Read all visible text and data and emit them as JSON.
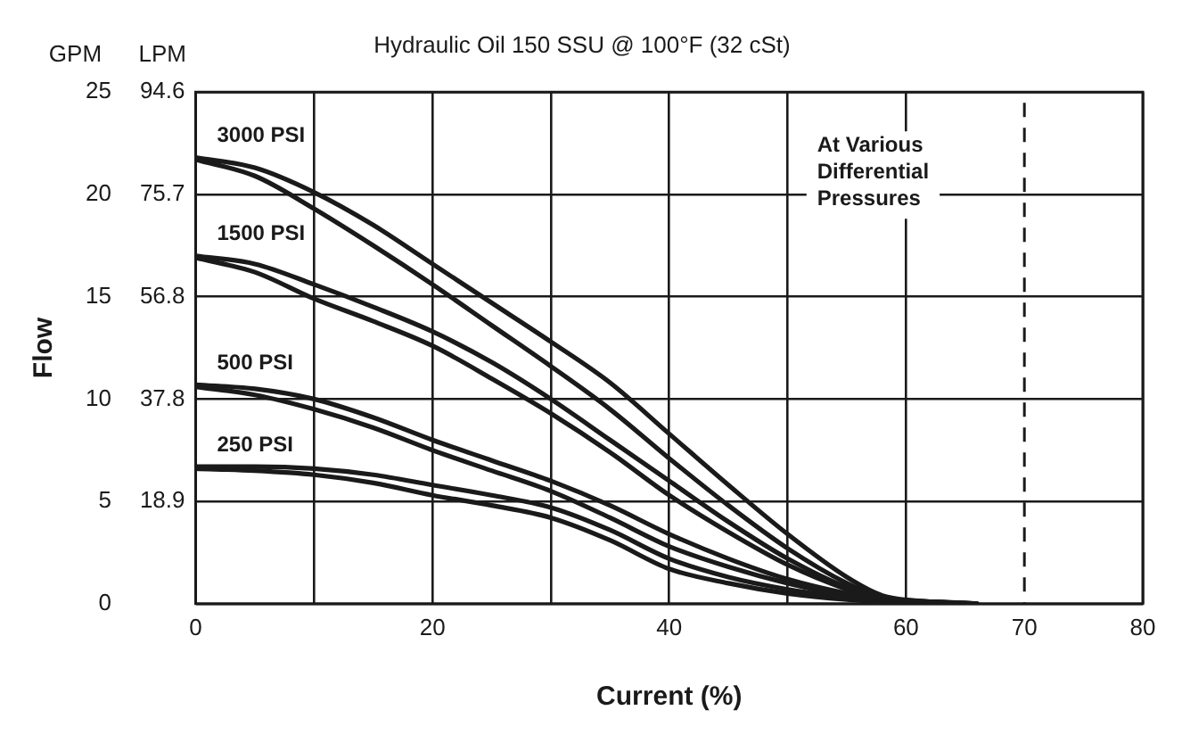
{
  "chart_data": {
    "type": "line",
    "title": "Hydraulic Oil 150 SSU @ 100°F (32 cSt)",
    "xlabel": "Current (%)",
    "ylabel": "Flow",
    "annotations": [
      "GPM",
      "LPM",
      "At Various Differential Pressures"
    ],
    "x": [
      0,
      5,
      10,
      15,
      20,
      25,
      30,
      35,
      40,
      45,
      50,
      55,
      58,
      62,
      66
    ],
    "series": [
      {
        "name": "3000 PSI",
        "color": "#1a1a1a",
        "values": [
          21.8,
          21.3,
          20.1,
          18.5,
          16.6,
          14.7,
          12.8,
          10.8,
          8.3,
          5.8,
          3.4,
          1.3,
          0.4,
          0.1,
          0
        ]
      },
      {
        "color": "#1a1a1a",
        "x": [
          0,
          5,
          10,
          15,
          20,
          25,
          30,
          35,
          40,
          45,
          50,
          55,
          58,
          62
        ],
        "values": [
          21.7,
          20.9,
          19.3,
          17.5,
          15.6,
          13.6,
          11.6,
          9.5,
          7.1,
          4.8,
          2.7,
          1.0,
          0.3,
          0
        ]
      },
      {
        "name": "1500 PSI",
        "color": "#1a1a1a",
        "values": [
          17.0,
          16.6,
          15.6,
          14.5,
          13.3,
          11.8,
          10.0,
          8.0,
          6.0,
          4.0,
          2.2,
          0.8,
          0.3,
          0.1,
          0
        ]
      },
      {
        "color": "#1a1a1a",
        "x": [
          0,
          5,
          10,
          15,
          20,
          25,
          30,
          35,
          40,
          45,
          50,
          55,
          58,
          62
        ],
        "values": [
          16.9,
          16.2,
          14.9,
          13.8,
          12.6,
          11.0,
          9.3,
          7.4,
          5.3,
          3.5,
          1.9,
          0.7,
          0.2,
          0
        ]
      },
      {
        "name": "500 PSI",
        "color": "#1a1a1a",
        "values": [
          10.7,
          10.5,
          10.0,
          9.1,
          8.0,
          7.0,
          6.0,
          4.8,
          3.4,
          2.2,
          1.2,
          0.5,
          0.2,
          0.1,
          0
        ]
      },
      {
        "color": "#1a1a1a",
        "x": [
          0,
          5,
          10,
          15,
          20,
          25,
          30,
          35,
          40,
          45,
          50,
          55,
          58,
          62
        ],
        "values": [
          10.6,
          10.2,
          9.5,
          8.6,
          7.5,
          6.5,
          5.5,
          4.2,
          2.8,
          1.8,
          1.0,
          0.4,
          0.2,
          0
        ]
      },
      {
        "name": "250 PSI",
        "color": "#1a1a1a",
        "values": [
          6.7,
          6.7,
          6.6,
          6.3,
          5.8,
          5.3,
          4.7,
          3.6,
          2.2,
          1.3,
          0.7,
          0.3,
          0.1,
          0.1,
          0
        ]
      },
      {
        "color": "#1a1a1a",
        "x": [
          0,
          5,
          10,
          15,
          20,
          25,
          30,
          35,
          40,
          45,
          50,
          55,
          58,
          62
        ],
        "values": [
          6.6,
          6.5,
          6.3,
          5.9,
          5.3,
          4.8,
          4.2,
          3.1,
          1.7,
          1.0,
          0.5,
          0.2,
          0.1,
          0
        ]
      }
    ],
    "xlim": [
      0,
      80
    ],
    "xticks": [
      0,
      {
        "value": 10,
        "label": null
      },
      20,
      {
        "value": 30,
        "label": null
      },
      40,
      {
        "value": 50,
        "label": null
      },
      60,
      70,
      80
    ],
    "ylim": [
      0,
      25
    ],
    "yticks": [
      0,
      5,
      10,
      15,
      20,
      25
    ],
    "y2lim": [
      0,
      94.6
    ],
    "y2ticks": [
      18.9,
      37.8,
      56.8,
      75.7,
      94.6
    ],
    "ref_lines": [
      {
        "axis": "x",
        "value": 70,
        "line_style": "dashed",
        "color": "#1a1a1a"
      }
    ],
    "grid": true,
    "legend": false,
    "marker": "none",
    "line_style": "solid"
  }
}
